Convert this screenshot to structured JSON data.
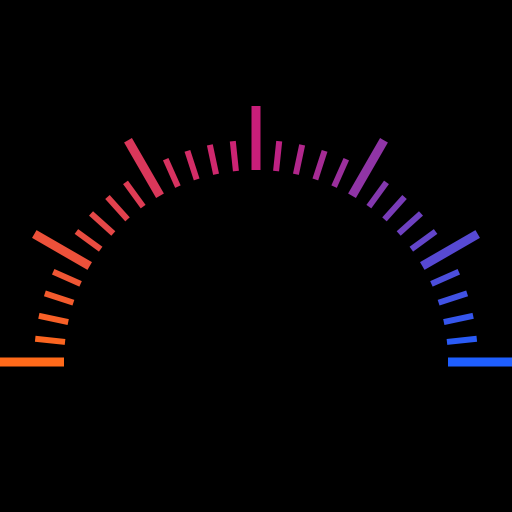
{
  "gauge": {
    "ticks_per_major": 5,
    "major_tick_count": 7,
    "minor_tick_count": 30,
    "start_color": "#ff6a1a",
    "mid_color": "#c81e7a",
    "end_color": "#1f5fff",
    "background": "#000000",
    "icon_name": "semicircle-gauge-ticks-icon"
  }
}
